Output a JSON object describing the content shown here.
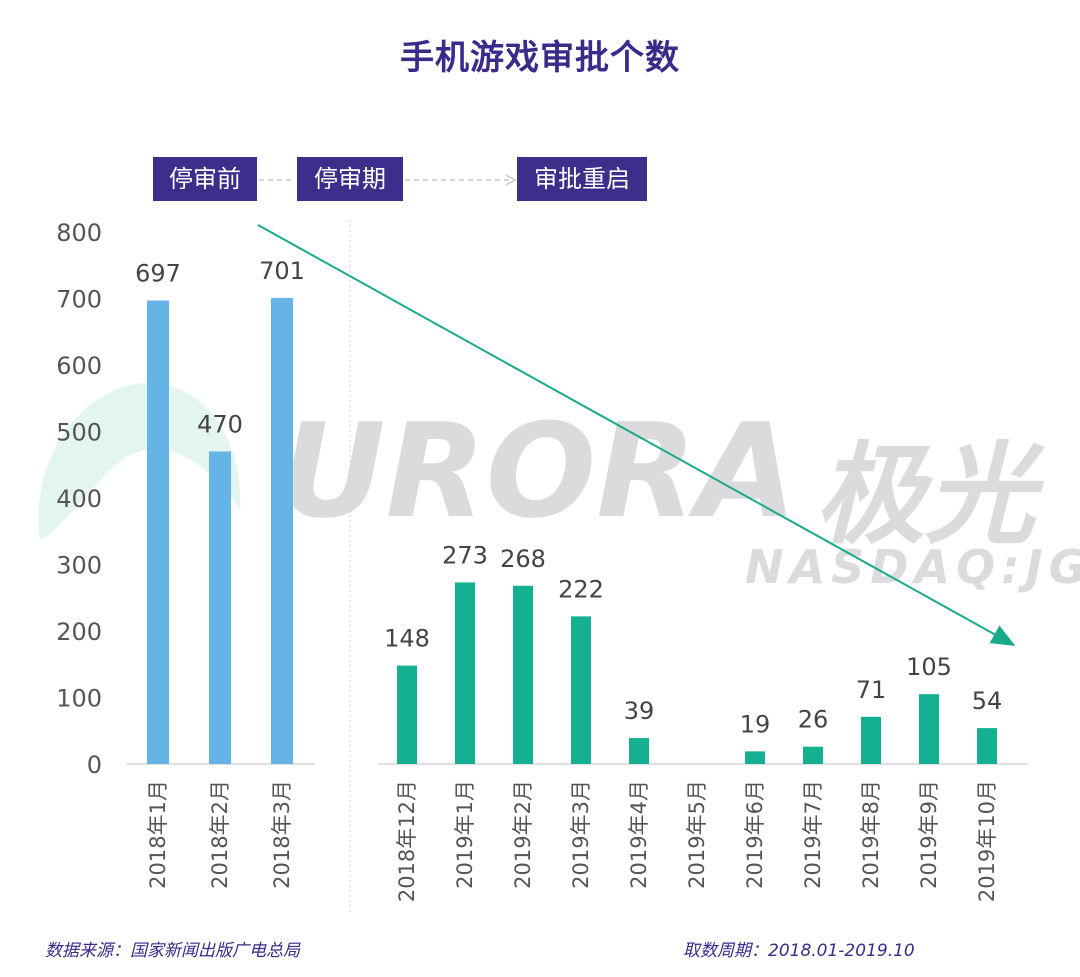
{
  "title": "手机游戏审批个数",
  "phases": [
    "停审前",
    "停审期",
    "审批重启"
  ],
  "footer": {
    "source": "数据来源：国家新闻出版广电总局",
    "period": "取数周期：2018.01-2019.10"
  },
  "watermark": {
    "brand": "URORA",
    "brand_cn": "极光",
    "ticker": "NASDAQ:JG"
  },
  "colors": {
    "before": "#66b3e8",
    "after": "#14b091",
    "trend": "#1aaa8a",
    "title": "#3b2a8a",
    "phase_bg": "#3d2e8c"
  },
  "chart_data": {
    "type": "bar",
    "title": "手机游戏审批个数",
    "ylim": [
      0,
      800
    ],
    "yticks": [
      0,
      100,
      200,
      300,
      400,
      500,
      600,
      700,
      800
    ],
    "xlabel": "",
    "ylabel": "",
    "series": [
      {
        "name": "停审前",
        "categories": [
          "2018年1月",
          "2018年2月",
          "2018年3月"
        ],
        "values": [
          697,
          470,
          701
        ]
      },
      {
        "name": "审批重启",
        "categories": [
          "2018年12月",
          "2019年1月",
          "2019年2月",
          "2019年3月",
          "2019年4月",
          "2019年5月",
          "2019年6月",
          "2019年7月",
          "2019年8月",
          "2019年9月",
          "2019年10月"
        ],
        "values": [
          148,
          273,
          268,
          222,
          39,
          null,
          19,
          26,
          71,
          105,
          54
        ]
      }
    ],
    "annotations": [
      "downward trend arrow"
    ]
  }
}
